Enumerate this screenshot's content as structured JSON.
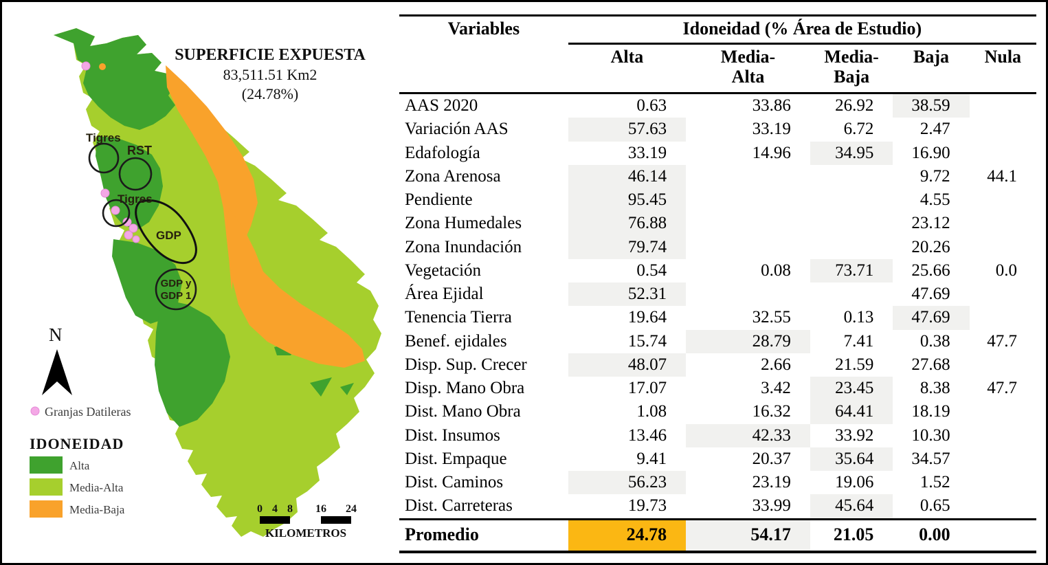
{
  "colors": {
    "alta": "#3FA22E",
    "media_alta": "#A6CF2D",
    "media_baja": "#F9A22B",
    "granjas_pink": "#F4A8E6",
    "cell_highlight": "#F1F1EF",
    "promedio_highlight": "#FBB713"
  },
  "map": {
    "title": {
      "line1": "SUPERFICIE EXPUESTA",
      "line2": "83,511.51 Km2",
      "line3": "(24.78%)"
    },
    "labels": {
      "tigres1": "Tigres",
      "rst": "RST",
      "tigres2": "Tigres",
      "gdp": "GDP",
      "gdp_y_line1": "GDP y",
      "gdp_y_line2": "GDP 1"
    },
    "north_label": "N",
    "granjas_label": "Granjas Datileras",
    "legend_title": "IDONEIDAD",
    "legend_items": [
      {
        "label": "Alta",
        "color": "#3FA22E"
      },
      {
        "label": "Media-Alta",
        "color": "#A6CF2D"
      },
      {
        "label": "Media-Baja",
        "color": "#F9A22B"
      }
    ],
    "scale": {
      "ticks": [
        "0",
        "4",
        "8",
        "16",
        "24"
      ],
      "unit": "KILOMETROS"
    }
  },
  "table": {
    "col_header_main": "Variables",
    "col_group_header": "Idoneidad (% Área de Estudio)",
    "columns": [
      {
        "label": "Alta",
        "wrap": false
      },
      {
        "label": "Media-Alta",
        "wrap": true
      },
      {
        "label": "Media-Baja",
        "wrap": true
      },
      {
        "label": "Baja",
        "wrap": false
      },
      {
        "label": "Nula",
        "wrap": false
      }
    ],
    "rows": [
      {
        "label": "AAS 2020",
        "values": [
          "0.63",
          "33.86",
          "26.92",
          "38.59",
          ""
        ],
        "highlight": 3
      },
      {
        "label": "Variación AAS",
        "values": [
          "57.63",
          "33.19",
          "6.72",
          "2.47",
          ""
        ],
        "highlight": 0
      },
      {
        "label": "Edafología",
        "values": [
          "33.19",
          "14.96",
          "34.95",
          "16.90",
          ""
        ],
        "highlight": 2
      },
      {
        "label": "Zona Arenosa",
        "values": [
          "46.14",
          "",
          "",
          "9.72",
          "44.1"
        ],
        "highlight": 0
      },
      {
        "label": "Pendiente",
        "values": [
          "95.45",
          "",
          "",
          "4.55",
          ""
        ],
        "highlight": 0
      },
      {
        "label": "Zona Humedales",
        "values": [
          "76.88",
          "",
          "",
          "23.12",
          ""
        ],
        "highlight": 0
      },
      {
        "label": "Zona Inundación",
        "values": [
          "79.74",
          "",
          "",
          "20.26",
          ""
        ],
        "highlight": 0
      },
      {
        "label": "Vegetación",
        "values": [
          "0.54",
          "0.08",
          "73.71",
          "25.66",
          "0.0"
        ],
        "highlight": 2
      },
      {
        "label": "Área Ejidal",
        "values": [
          "52.31",
          "",
          "",
          "47.69",
          ""
        ],
        "highlight": 0
      },
      {
        "label": "Tenencia Tierra",
        "values": [
          "19.64",
          "32.55",
          "0.13",
          "47.69",
          ""
        ],
        "highlight": 3
      },
      {
        "label": "Benef. ejidales",
        "values": [
          "15.74",
          "28.79",
          "7.41",
          "0.38",
          "47.7"
        ],
        "highlight": 1
      },
      {
        "label": "Disp. Sup. Crecer",
        "values": [
          "48.07",
          "2.66",
          "21.59",
          "27.68",
          ""
        ],
        "highlight": 0
      },
      {
        "label": "Disp. Mano Obra",
        "values": [
          "17.07",
          "3.42",
          "23.45",
          "8.38",
          "47.7"
        ],
        "highlight": 2
      },
      {
        "label": "Dist. Mano Obra",
        "values": [
          "1.08",
          "16.32",
          "64.41",
          "18.19",
          ""
        ],
        "highlight": 2
      },
      {
        "label": "Dist. Insumos",
        "values": [
          "13.46",
          "42.33",
          "33.92",
          "10.30",
          ""
        ],
        "highlight": 1
      },
      {
        "label": "Dist. Empaque",
        "values": [
          "9.41",
          "20.37",
          "35.64",
          "34.57",
          ""
        ],
        "highlight": 2
      },
      {
        "label": "Dist. Caminos",
        "values": [
          "56.23",
          "23.19",
          "19.06",
          "1.52",
          ""
        ],
        "highlight": 0
      },
      {
        "label": "Dist. Carreteras",
        "values": [
          "19.73",
          "33.99",
          "45.64",
          "0.65",
          ""
        ],
        "highlight": 2
      }
    ],
    "footer": {
      "label": "Promedio",
      "values": [
        "24.78",
        "54.17",
        "21.05",
        "0.00",
        ""
      ],
      "orange_index": 0,
      "gray_index": 1
    }
  }
}
